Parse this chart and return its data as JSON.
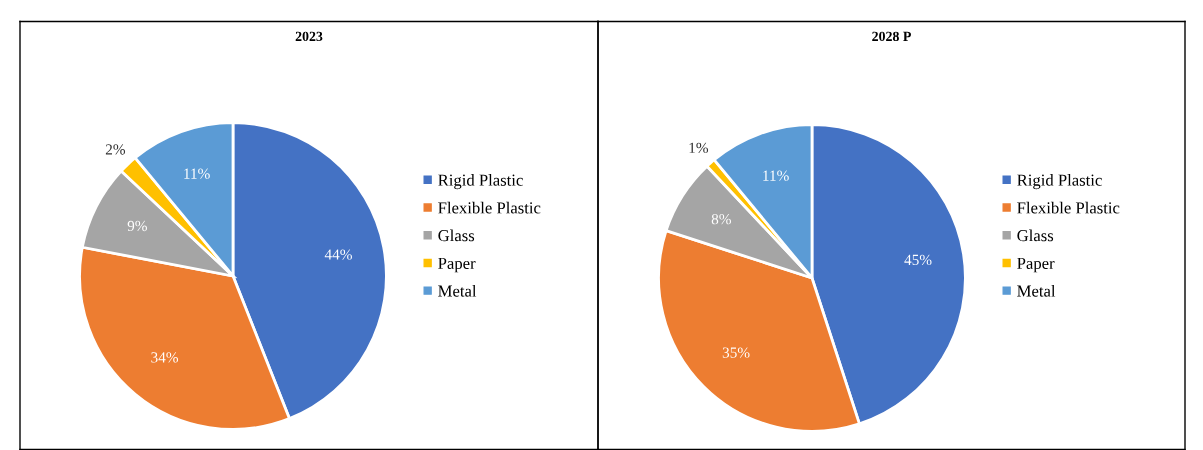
{
  "chart_data": [
    {
      "type": "pie",
      "title": "2023",
      "categories": [
        "Rigid Plastic",
        "Flexible Plastic",
        "Glass",
        "Paper",
        "Metal"
      ],
      "values": [
        44,
        34,
        9,
        2,
        11
      ],
      "value_labels": [
        "44%",
        "34%",
        "9%",
        "2%",
        "11%"
      ],
      "colors": [
        "#4472c4",
        "#ed7d31",
        "#a5a5a5",
        "#ffc000",
        "#5b9bd5"
      ],
      "legend": "right"
    },
    {
      "type": "pie",
      "title": "2028 P",
      "categories": [
        "Rigid Plastic",
        "Flexible Plastic",
        "Glass",
        "Paper",
        "Metal"
      ],
      "values": [
        45,
        35,
        8,
        1,
        11
      ],
      "value_labels": [
        "45%",
        "35%",
        "8%",
        "1%",
        "11%"
      ],
      "colors": [
        "#4472c4",
        "#ed7d31",
        "#a5a5a5",
        "#ffc000",
        "#5b9bd5"
      ],
      "legend": "right"
    }
  ]
}
